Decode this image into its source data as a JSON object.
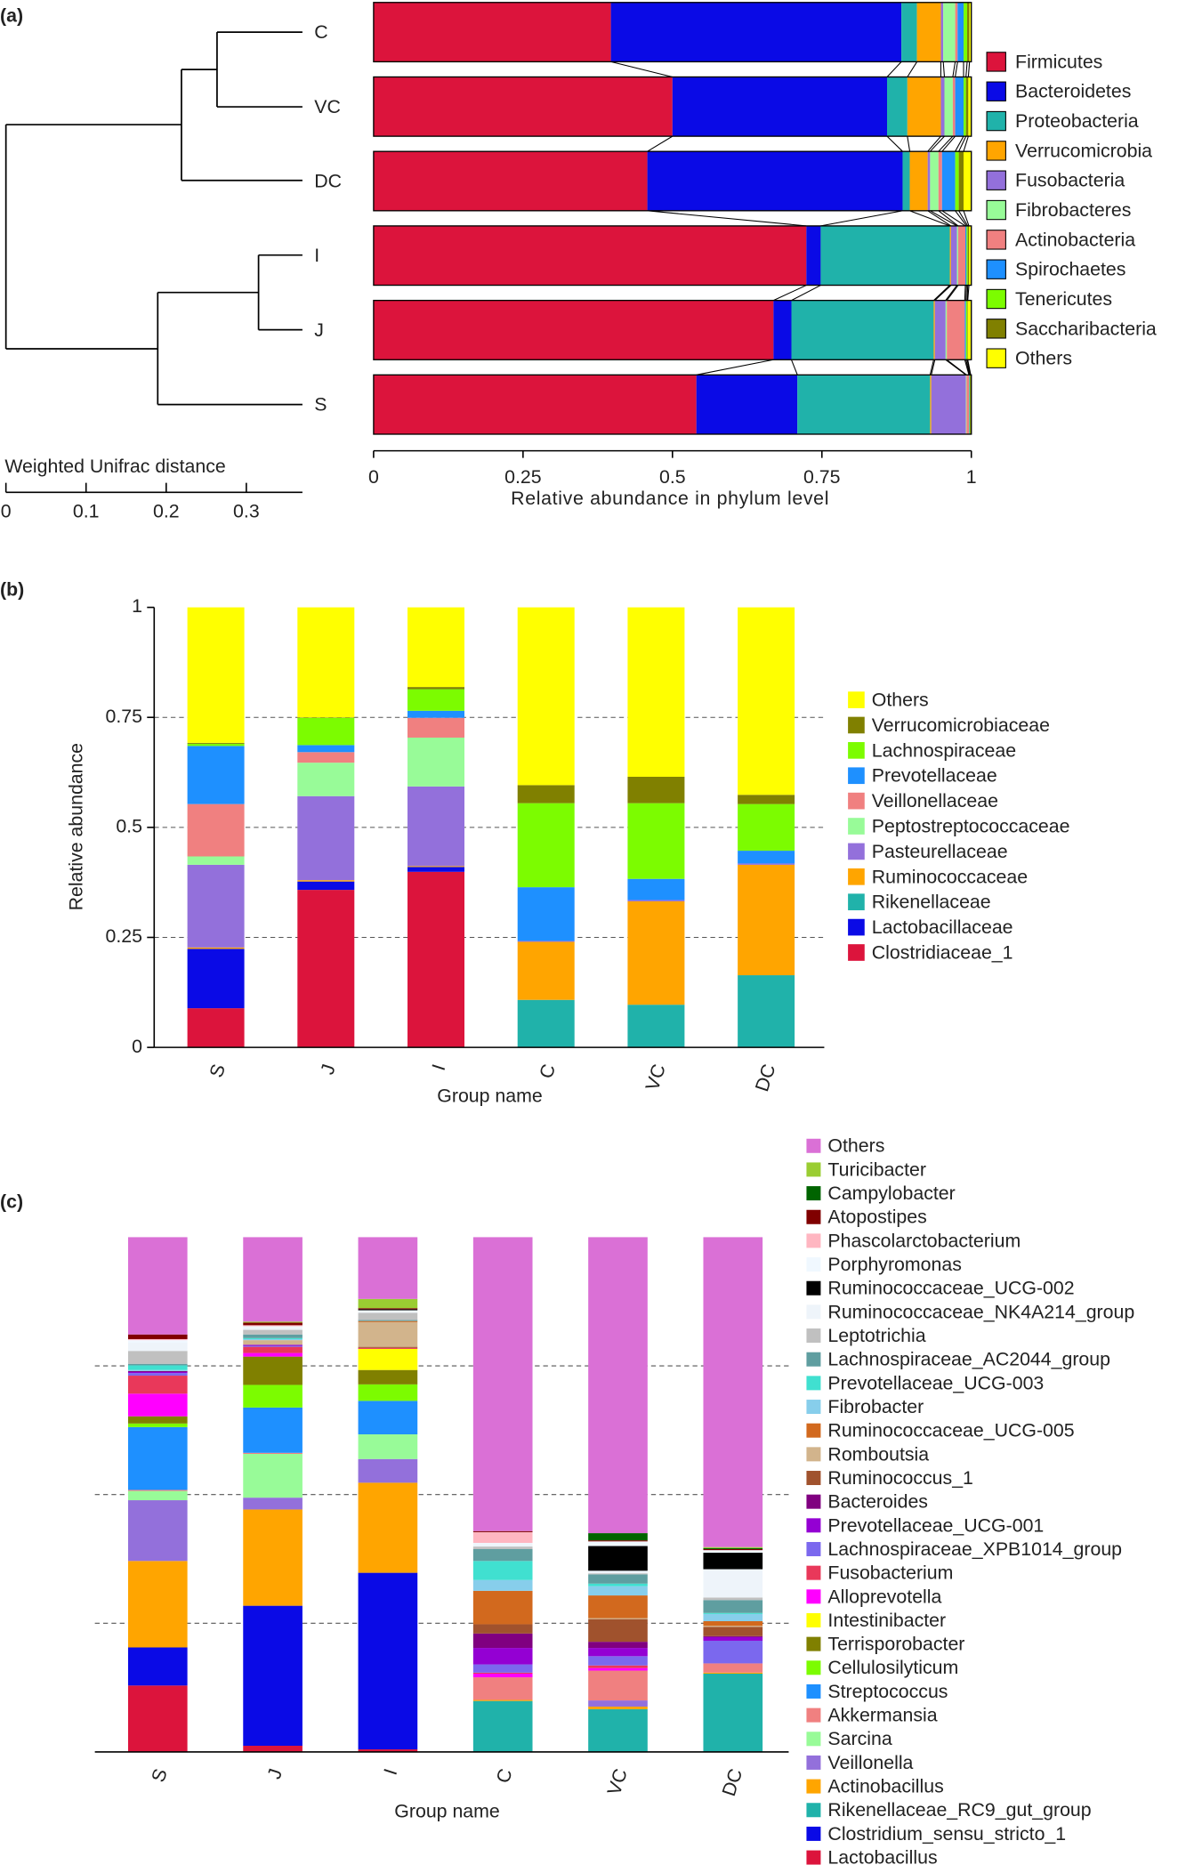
{
  "chart_data": [
    {
      "type": "bar",
      "orientation": "horizontal",
      "stacked": true,
      "panel_label": "(a)",
      "categories": [
        "C",
        "VC",
        "DC",
        "I",
        "J",
        "S"
      ],
      "series": [
        {
          "name": "Firmicutes",
          "color": "#dc143c",
          "values": [
            0.397,
            0.5,
            0.458,
            0.724,
            0.669,
            0.54
          ]
        },
        {
          "name": "Bacteroidetes",
          "color": "#0a0ae6",
          "values": [
            0.486,
            0.359,
            0.427,
            0.024,
            0.03,
            0.169
          ]
        },
        {
          "name": "Proteobacteria",
          "color": "#20b2aa",
          "values": [
            0.026,
            0.034,
            0.012,
            0.216,
            0.238,
            0.222
          ]
        },
        {
          "name": "Verrucomicrobia",
          "color": "#ffa500",
          "values": [
            0.04,
            0.056,
            0.03,
            0.002,
            0.002,
            0.002
          ]
        },
        {
          "name": "Fusobacteria",
          "color": "#9370db",
          "values": [
            0.004,
            0.006,
            0.004,
            0.01,
            0.018,
            0.058
          ]
        },
        {
          "name": "Fibrobacteres",
          "color": "#98fb98",
          "values": [
            0.02,
            0.014,
            0.014,
            0.002,
            0.002,
            0.001
          ]
        },
        {
          "name": "Actinobacteria",
          "color": "#f08080",
          "values": [
            0.004,
            0.004,
            0.006,
            0.012,
            0.03,
            0.004
          ]
        },
        {
          "name": "Spirochaetes",
          "color": "#1e90ff",
          "values": [
            0.01,
            0.014,
            0.022,
            0.002,
            0.002,
            0.001
          ]
        },
        {
          "name": "Tenericutes",
          "color": "#7cfc00",
          "values": [
            0.006,
            0.004,
            0.006,
            0.002,
            0.002,
            0.001
          ]
        },
        {
          "name": "Saccharibacteria",
          "color": "#808000",
          "values": [
            0.004,
            0.004,
            0.008,
            0.002,
            0.001,
            0.001
          ]
        },
        {
          "name": "Others",
          "color": "#ffff00",
          "values": [
            0.003,
            0.005,
            0.013,
            0.004,
            0.006,
            0.001
          ]
        }
      ],
      "xlim": [
        0,
        1
      ],
      "xticks": [
        0,
        0.25,
        0.5,
        0.75,
        1
      ],
      "x_label": "Relative abundance in phylum level",
      "legend": "right",
      "dendrogram": {
        "axis_label": "Weighted Unifrac distance",
        "xlim": [
          0,
          0.37
        ],
        "xticks": [
          0,
          0.1,
          0.2,
          0.3
        ]
      }
    },
    {
      "type": "bar",
      "orientation": "vertical",
      "stacked": true,
      "panel_label": "(b)",
      "categories": [
        "S",
        "J",
        "I",
        "C",
        "VC",
        "DC"
      ],
      "series": [
        {
          "name": "Clostridiaceae_1",
          "color": "#dc143c",
          "values": [
            0.089,
            0.358,
            0.399,
            0,
            0,
            0
          ]
        },
        {
          "name": "Lactobacillaceae",
          "color": "#0a0ae6",
          "values": [
            0.135,
            0.019,
            0.011,
            0,
            0,
            0
          ]
        },
        {
          "name": "Rikenellaceae",
          "color": "#20b2aa",
          "values": [
            0,
            0,
            0,
            0.108,
            0.097,
            0.164
          ]
        },
        {
          "name": "Ruminococcaceae",
          "color": "#ffa500",
          "values": [
            0.003,
            0.003,
            0.002,
            0.132,
            0.235,
            0.251
          ]
        },
        {
          "name": "Pasteurellaceae",
          "color": "#9370db",
          "values": [
            0.188,
            0.191,
            0.181,
            0.002,
            0.003,
            0.003
          ]
        },
        {
          "name": "Peptostreptococcaceae",
          "color": "#98fb98",
          "values": [
            0.019,
            0.076,
            0.111,
            0,
            0,
            0
          ]
        },
        {
          "name": "Veillonellaceae",
          "color": "#f08080",
          "values": [
            0.119,
            0.024,
            0.045,
            0,
            0,
            0
          ]
        },
        {
          "name": "Prevotellaceae",
          "color": "#1e90ff",
          "values": [
            0.132,
            0.016,
            0.016,
            0.122,
            0.048,
            0.029
          ]
        },
        {
          "name": "Lachnospiraceae",
          "color": "#7cfc00",
          "values": [
            0.005,
            0.062,
            0.049,
            0.191,
            0.172,
            0.106
          ]
        },
        {
          "name": "Verrucomicrobiaceae",
          "color": "#808000",
          "values": [
            0.002,
            0.001,
            0.005,
            0.041,
            0.06,
            0.021
          ]
        },
        {
          "name": "Others",
          "color": "#ffff00",
          "values": [
            0.308,
            0.25,
            0.181,
            0.404,
            0.385,
            0.426
          ]
        }
      ],
      "ylim": [
        0,
        1
      ],
      "yticks": [
        0,
        0.25,
        0.5,
        0.75,
        1
      ],
      "grid": "dashed",
      "y_label": "Relative abundance",
      "x_label": "Group name",
      "legend": "right"
    },
    {
      "type": "bar",
      "orientation": "vertical",
      "stacked": true,
      "panel_label": "(c)",
      "categories": [
        "S",
        "J",
        "I",
        "C",
        "VC",
        "DC"
      ],
      "series": [
        {
          "name": "Lactobacillus",
          "color": "#dc143c",
          "values": [
            0.129,
            0.012,
            0.005,
            0,
            0,
            0
          ]
        },
        {
          "name": "Clostridium_sensu_stricto_1",
          "color": "#0a0ae6",
          "values": [
            0.074,
            0.272,
            0.343,
            0,
            0,
            0
          ]
        },
        {
          "name": "Rikenellaceae_RC9_gut_group",
          "color": "#20b2aa",
          "values": [
            0,
            0,
            0,
            0.099,
            0.083,
            0.152
          ]
        },
        {
          "name": "Actinobacillus",
          "color": "#ffa500",
          "values": [
            0.168,
            0.187,
            0.175,
            0.002,
            0.005,
            0.002
          ]
        },
        {
          "name": "Veillonella",
          "color": "#9370db",
          "values": [
            0.118,
            0.023,
            0.046,
            0,
            0.012,
            0
          ]
        },
        {
          "name": "Sarcina",
          "color": "#98fb98",
          "values": [
            0.018,
            0.085,
            0.048,
            0,
            0,
            0
          ]
        },
        {
          "name": "Akkermansia",
          "color": "#f08080",
          "values": [
            0.002,
            0.002,
            0,
            0.044,
            0.058,
            0.018
          ]
        },
        {
          "name": "Streptococcus",
          "color": "#1e90ff",
          "values": [
            0.122,
            0.088,
            0.065,
            0,
            0,
            0
          ]
        },
        {
          "name": "Cellulosilyticum",
          "color": "#7cfc00",
          "values": [
            0.007,
            0.044,
            0.032,
            0,
            0,
            0
          ]
        },
        {
          "name": "Terrisporobacter",
          "color": "#808000",
          "values": [
            0.014,
            0.055,
            0.028,
            0,
            0,
            0
          ]
        },
        {
          "name": "Intestinibacter",
          "color": "#ffff00",
          "values": [
            0,
            0,
            0.041,
            0,
            0,
            0
          ]
        },
        {
          "name": "Alloprevotella",
          "color": "#ff00ff",
          "values": [
            0.044,
            0.007,
            0,
            0.007,
            0.005,
            0
          ]
        },
        {
          "name": "Fusobacterium",
          "color": "#e9385a",
          "values": [
            0.035,
            0.012,
            0.002,
            0.002,
            0.005,
            0
          ]
        },
        {
          "name": "Lachnospiraceae_XPB1014_group",
          "color": "#7b68ee",
          "values": [
            0.005,
            0.002,
            0,
            0.016,
            0.018,
            0.044
          ]
        },
        {
          "name": "Prevotellaceae_UCG-001",
          "color": "#9400d3",
          "values": [
            0.002,
            0.002,
            0,
            0.032,
            0.016,
            0.007
          ]
        },
        {
          "name": "Bacteroides",
          "color": "#800080",
          "values": [
            0.002,
            0,
            0,
            0.028,
            0.012,
            0.002
          ]
        },
        {
          "name": "Ruminococcus_1",
          "color": "#a0522d",
          "values": [
            0,
            0,
            0.002,
            0.018,
            0.044,
            0.018
          ]
        },
        {
          "name": "Romboutsia",
          "color": "#d2b48c",
          "values": [
            0,
            0.009,
            0.048,
            0,
            0.002,
            0.002
          ]
        },
        {
          "name": "Ruminococcaceae_UCG-005",
          "color": "#d2691e",
          "values": [
            0,
            0,
            0.002,
            0.065,
            0.044,
            0.009
          ]
        },
        {
          "name": "Fibrobacter",
          "color": "#87ceeb",
          "values": [
            0.002,
            0.002,
            0,
            0.021,
            0.018,
            0.014
          ]
        },
        {
          "name": "Prevotellaceae_UCG-003",
          "color": "#40e0d0",
          "values": [
            0.009,
            0.002,
            0,
            0.037,
            0.005,
            0.002
          ]
        },
        {
          "name": "Lachnospiraceae_AC2044_group",
          "color": "#5f9ea0",
          "values": [
            0.003,
            0.007,
            0.002,
            0.023,
            0.018,
            0.025
          ]
        },
        {
          "name": "Leptotrichia",
          "color": "#c0c0c0",
          "values": [
            0.025,
            0.009,
            0.014,
            0.005,
            0.002,
            0.005
          ]
        },
        {
          "name": "Ruminococcaceae_NK4A214_group",
          "color": "#eef4fa",
          "values": [
            0.016,
            0.005,
            0.005,
            0.005,
            0.005,
            0.055
          ]
        },
        {
          "name": "Ruminococcaceae_UCG-002",
          "color": "#000000",
          "values": [
            0,
            0,
            0.002,
            0,
            0.048,
            0.032
          ]
        },
        {
          "name": "Porphyromonas",
          "color": "#f0f8ff",
          "values": [
            0.005,
            0.002,
            0,
            0.002,
            0.009,
            0.005
          ]
        },
        {
          "name": "Phascolarctobacterium",
          "color": "#ffb6c1",
          "values": [
            0.002,
            0.002,
            0,
            0.021,
            0,
            0
          ]
        },
        {
          "name": "Atopostipes",
          "color": "#800000",
          "values": [
            0.009,
            0.005,
            0.002,
            0.002,
            0.002,
            0.002
          ]
        },
        {
          "name": "Campylobacter",
          "color": "#006400",
          "values": [
            0,
            0,
            0,
            0,
            0.014,
            0.002
          ]
        },
        {
          "name": "Turicibacter",
          "color": "#9acd32",
          "values": [
            0,
            0.002,
            0.018,
            0,
            0,
            0.002
          ]
        },
        {
          "name": "Others",
          "color": "#da70d6",
          "values": [
            0.189,
            0.164,
            0.12,
            0.571,
            0.575,
            0.602
          ]
        }
      ],
      "ylim": [
        0,
        1
      ],
      "gridlines": [
        0.25,
        0.5,
        0.75
      ],
      "grid": "dashed",
      "x_label": "Group name",
      "legend": "right"
    }
  ]
}
